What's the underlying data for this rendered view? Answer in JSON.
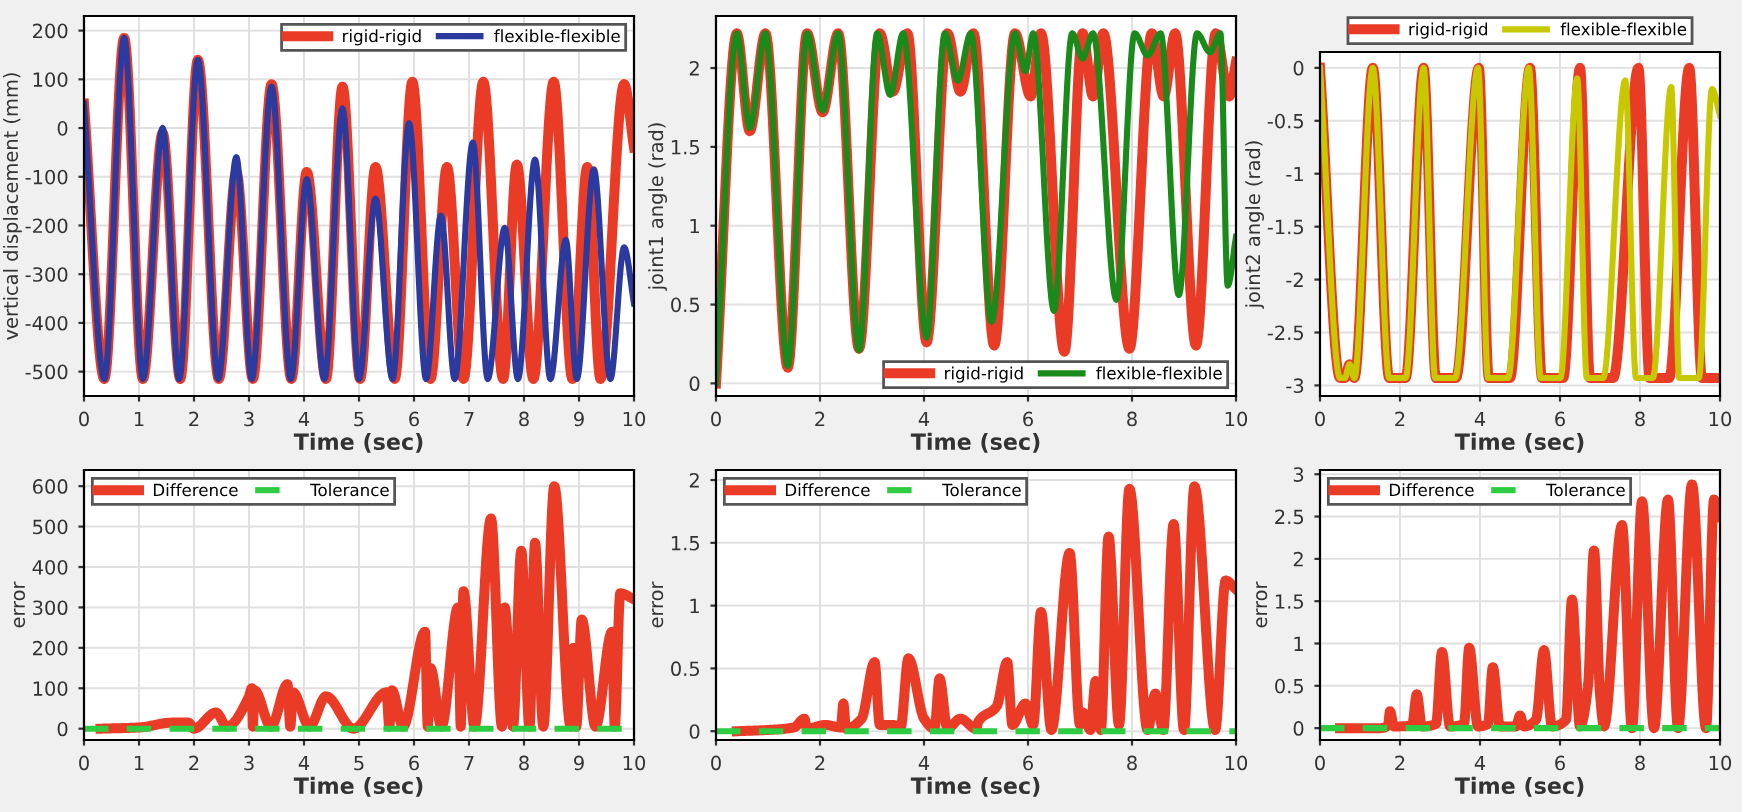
{
  "chart_data": [
    {
      "type": "line",
      "xlabel": "Time (sec)",
      "ylabel": "vertical displacement (mm)",
      "xlim": [
        0,
        10
      ],
      "ylim": [
        -550,
        230
      ],
      "xticks": [
        0,
        1,
        2,
        3,
        4,
        5,
        6,
        7,
        8,
        9,
        10
      ],
      "yticks": [
        -500,
        -400,
        -300,
        -200,
        -100,
        0,
        100,
        200
      ],
      "grid": true,
      "legend": "top right",
      "series": [
        {
          "name": "rigid-rigid",
          "color": "#ea3b26",
          "x": [
            0,
            0.37,
            0.73,
            1.07,
            1.43,
            1.75,
            2.07,
            2.45,
            2.77,
            3.07,
            3.41,
            3.77,
            4.05,
            4.4,
            4.7,
            5.02,
            5.3,
            5.65,
            5.97,
            6.3,
            6.6,
            6.9,
            7.26,
            7.62,
            7.87,
            8.17,
            8.54,
            8.88,
            9.15,
            9.39,
            9.82,
            10
          ],
          "values": [
            50,
            -515,
            185,
            -515,
            -10,
            -515,
            140,
            -515,
            -90,
            -515,
            90,
            -515,
            -90,
            -515,
            85,
            -515,
            -80,
            -515,
            95,
            -515,
            -80,
            -515,
            95,
            -515,
            -75,
            -515,
            95,
            -515,
            -80,
            -515,
            90,
            -40
          ]
        },
        {
          "name": "flexible-flexible",
          "color": "#2b3a9e",
          "x": [
            0,
            0.37,
            0.73,
            1.07,
            1.43,
            1.73,
            2.07,
            2.44,
            2.77,
            3.05,
            3.41,
            3.76,
            4.05,
            4.37,
            4.7,
            5.0,
            5.3,
            5.61,
            5.91,
            6.22,
            6.49,
            6.74,
            7.07,
            7.34,
            7.65,
            7.89,
            8.2,
            8.48,
            8.76,
            8.96,
            9.27,
            9.57,
            9.82,
            10
          ],
          "values": [
            50,
            -515,
            185,
            -515,
            0,
            -515,
            140,
            -515,
            -60,
            -515,
            85,
            -515,
            -105,
            -515,
            40,
            -515,
            -145,
            -515,
            10,
            -515,
            -180,
            -515,
            -30,
            -515,
            -205,
            -515,
            -65,
            -515,
            -230,
            -515,
            -85,
            -515,
            -245,
            -360
          ]
        }
      ]
    },
    {
      "type": "line",
      "xlabel": "Time (sec)",
      "ylabel": "joint1 angle (rad)",
      "xlim": [
        0,
        10
      ],
      "ylim": [
        -0.08,
        2.33
      ],
      "xticks": [
        0,
        2,
        4,
        6,
        8,
        10
      ],
      "yticks": [
        0,
        0.5,
        1,
        1.5,
        2
      ],
      "grid": true,
      "legend": "bottom right",
      "series": [
        {
          "name": "rigid-rigid",
          "color": "#ea3b26",
          "x": [
            0,
            0.4,
            0.65,
            0.95,
            1.38,
            1.75,
            2.05,
            2.35,
            2.75,
            3.15,
            3.4,
            3.68,
            4.05,
            4.45,
            4.7,
            4.95,
            5.35,
            5.75,
            6.05,
            6.25,
            6.7,
            7.05,
            7.25,
            7.45,
            7.95,
            8.38,
            8.61,
            8.83,
            9.23,
            9.61,
            9.87,
            10
          ],
          "values": [
            0,
            2.22,
            1.6,
            2.22,
            0.1,
            2.22,
            1.72,
            2.22,
            0.22,
            2.22,
            1.85,
            2.22,
            0.26,
            2.22,
            1.85,
            2.22,
            0.24,
            2.22,
            1.82,
            2.22,
            0.2,
            2.22,
            1.82,
            2.22,
            0.22,
            2.22,
            1.82,
            2.22,
            0.24,
            2.22,
            1.82,
            2.04
          ]
        },
        {
          "name": "flexible-flexible",
          "color": "#1a8a1a",
          "x": [
            0,
            0.4,
            0.65,
            0.95,
            1.38,
            1.75,
            2.05,
            2.35,
            2.75,
            3.1,
            3.35,
            3.6,
            4.05,
            4.4,
            4.65,
            4.9,
            5.3,
            5.75,
            5.95,
            6.1,
            6.5,
            6.85,
            7.05,
            7.25,
            7.7,
            8.05,
            8.3,
            8.55,
            8.9,
            9.25,
            9.5,
            9.7,
            9.84,
            10
          ],
          "values": [
            0,
            2.22,
            1.62,
            2.22,
            0.11,
            2.22,
            1.73,
            2.22,
            0.21,
            2.22,
            1.83,
            2.22,
            0.29,
            2.22,
            1.92,
            2.22,
            0.39,
            2.22,
            1.98,
            2.22,
            0.46,
            2.22,
            2.06,
            2.22,
            0.53,
            2.22,
            2.08,
            2.22,
            0.56,
            2.22,
            2.1,
            2.22,
            0.62,
            0.93
          ]
        }
      ]
    },
    {
      "type": "line",
      "xlabel": "Time (sec)",
      "ylabel": "joint2 angle (rad)",
      "xlim": [
        0,
        10
      ],
      "ylim": [
        -3.1,
        0.15
      ],
      "xticks": [
        0,
        2,
        4,
        6,
        8,
        10
      ],
      "yticks": [
        -3,
        -2.5,
        -2,
        -1.5,
        -1,
        -0.5,
        0
      ],
      "grid": true,
      "legend": "top",
      "series": [
        {
          "name": "rigid-rigid",
          "color": "#ea3b26",
          "x": [
            0,
            0.5,
            0.62,
            0.74,
            0.86,
            1.32,
            1.73,
            2.14,
            2.59,
            2.9,
            3.4,
            3.97,
            4.22,
            4.75,
            5.25,
            5.55,
            6.08,
            6.5,
            6.75,
            7.33,
            7.96,
            8.24,
            8.73,
            9.23,
            9.55,
            10
          ],
          "values": [
            0,
            -2.93,
            -2.93,
            -2.8,
            -2.93,
            0,
            -2.93,
            -2.93,
            0,
            -2.93,
            -2.93,
            0,
            -2.93,
            -2.93,
            0,
            -2.93,
            -2.93,
            0,
            -2.93,
            -2.93,
            0,
            -2.93,
            -2.93,
            0,
            -2.93,
            -2.93
          ]
        },
        {
          "name": "flexible-flexible",
          "color": "#c8c800",
          "x": [
            0,
            0.5,
            0.62,
            0.74,
            0.86,
            1.32,
            1.73,
            2.14,
            2.59,
            2.88,
            3.38,
            3.95,
            4.2,
            4.7,
            5.22,
            5.52,
            6.01,
            6.43,
            6.67,
            7.08,
            7.63,
            7.9,
            8.32,
            8.78,
            8.98,
            9.47,
            9.8,
            10
          ],
          "values": [
            0,
            -2.93,
            -2.93,
            -2.8,
            -2.93,
            0,
            -2.93,
            -2.93,
            0,
            -2.93,
            -2.93,
            0,
            -2.93,
            -2.93,
            0,
            -2.93,
            -2.93,
            -0.1,
            -2.93,
            -2.93,
            -0.12,
            -2.93,
            -2.93,
            -0.18,
            -2.93,
            -2.93,
            -0.2,
            -0.45
          ]
        }
      ]
    },
    {
      "type": "line",
      "xlabel": "Time (sec)",
      "ylabel": "error",
      "xlim": [
        0,
        10
      ],
      "ylim": [
        -28,
        640
      ],
      "xticks": [
        0,
        1,
        2,
        3,
        4,
        5,
        6,
        7,
        8,
        9,
        10
      ],
      "yticks": [
        0,
        100,
        200,
        300,
        400,
        500,
        600
      ],
      "grid": true,
      "legend": "top left",
      "series": [
        {
          "name": "Difference",
          "color": "#ea3b26",
          "x": [
            0.3,
            1.0,
            1.6,
            1.9,
            2.0,
            2.4,
            2.6,
            3.0,
            3.05,
            3.07,
            3.1,
            3.4,
            3.7,
            3.75,
            3.8,
            4.1,
            4.4,
            4.9,
            5.5,
            5.55,
            5.6,
            5.8,
            6.2,
            6.25,
            6.3,
            6.5,
            6.8,
            6.85,
            6.9,
            7.1,
            7.4,
            7.6,
            7.65,
            7.8,
            7.95,
            8.1,
            8.2,
            8.35,
            8.55,
            8.85,
            8.9,
            8.95,
            9.05,
            9.3,
            9.6,
            9.65,
            9.75,
            10
          ],
          "values": [
            0,
            3,
            15,
            15,
            0,
            40,
            5,
            80,
            100,
            5,
            95,
            5,
            110,
            5,
            90,
            5,
            80,
            0,
            90,
            5,
            95,
            5,
            240,
            5,
            150,
            5,
            300,
            5,
            340,
            5,
            520,
            5,
            300,
            5,
            440,
            5,
            460,
            5,
            600,
            5,
            200,
            5,
            270,
            5,
            240,
            5,
            335,
            320
          ]
        },
        {
          "name": "Tolerance",
          "color": "#2ecc40",
          "line_style": "dashed",
          "x": [
            0,
            10
          ],
          "values": [
            0,
            0
          ]
        }
      ]
    },
    {
      "type": "line",
      "xlabel": "Time (sec)",
      "ylabel": "error",
      "xlim": [
        0,
        10
      ],
      "ylim": [
        -0.07,
        2.08
      ],
      "xticks": [
        0,
        2,
        4,
        6,
        8,
        10
      ],
      "yticks": [
        0,
        0.5,
        1,
        1.5,
        2
      ],
      "grid": true,
      "legend": "top left",
      "series": [
        {
          "name": "Difference",
          "color": "#ea3b26",
          "x": [
            0.4,
            1.0,
            1.5,
            1.7,
            1.75,
            2.1,
            2.4,
            2.45,
            2.5,
            2.8,
            3.05,
            3.15,
            3.4,
            3.55,
            3.7,
            4.0,
            4.2,
            4.3,
            4.45,
            4.7,
            5.0,
            5.05,
            5.4,
            5.6,
            5.7,
            5.95,
            6.1,
            6.25,
            6.45,
            6.8,
            7.0,
            7.05,
            7.2,
            7.3,
            7.4,
            7.55,
            7.75,
            7.95,
            8.3,
            8.45,
            8.6,
            8.8,
            9.0,
            9.2,
            9.6,
            9.8,
            10
          ],
          "values": [
            0,
            0.01,
            0.03,
            0.1,
            0.02,
            0.05,
            0.03,
            0.22,
            0.02,
            0.1,
            0.55,
            0.05,
            0.05,
            0.03,
            0.58,
            0.1,
            0.02,
            0.42,
            0.02,
            0.1,
            0.02,
            0.08,
            0.2,
            0.55,
            0.05,
            0.22,
            0.05,
            0.95,
            0.01,
            1.42,
            0.05,
            0.15,
            0.01,
            0.4,
            0.01,
            1.55,
            0.05,
            1.93,
            0.01,
            0.3,
            0.01,
            1.65,
            0.01,
            1.95,
            0.01,
            1.2,
            1.13
          ]
        },
        {
          "name": "Tolerance",
          "color": "#2ecc40",
          "line_style": "dashed",
          "x": [
            0,
            10
          ],
          "values": [
            0,
            0
          ]
        }
      ]
    },
    {
      "type": "line",
      "xlabel": "Time (sec)",
      "ylabel": "error",
      "xlim": [
        0,
        10
      ],
      "ylim": [
        -0.14,
        3.05
      ],
      "xticks": [
        0,
        2,
        4,
        6,
        8,
        10
      ],
      "yticks": [
        0,
        0.5,
        1,
        1.5,
        2,
        2.5,
        3
      ],
      "grid": true,
      "legend": "top left",
      "series": [
        {
          "name": "Difference",
          "color": "#ea3b26",
          "x": [
            0.5,
            1.5,
            1.7,
            1.75,
            1.85,
            2.3,
            2.42,
            2.55,
            2.9,
            3.05,
            3.25,
            3.6,
            3.73,
            3.95,
            4.2,
            4.32,
            4.5,
            4.9,
            5.0,
            5.1,
            5.4,
            5.6,
            5.8,
            6.15,
            6.3,
            6.5,
            6.7,
            6.85,
            7.0,
            7.1,
            7.55,
            7.8,
            8.05,
            8.35,
            8.7,
            8.95,
            9.3,
            9.65,
            9.85,
            10
          ],
          "values": [
            0,
            0,
            0.03,
            0.2,
            0.02,
            0.03,
            0.4,
            0.02,
            0.05,
            0.9,
            0.02,
            0.05,
            0.95,
            0.02,
            0.05,
            0.72,
            0.02,
            0.02,
            0.15,
            0.02,
            0.1,
            0.92,
            0.02,
            0.1,
            1.52,
            0.02,
            0.5,
            2.1,
            0.4,
            0.02,
            2.4,
            0,
            2.68,
            0,
            2.7,
            0,
            2.88,
            0,
            2.7,
            2.5
          ]
        },
        {
          "name": "Tolerance",
          "color": "#2ecc40",
          "line_style": "dashed",
          "x": [
            0,
            10
          ],
          "values": [
            0,
            0
          ]
        }
      ]
    }
  ]
}
